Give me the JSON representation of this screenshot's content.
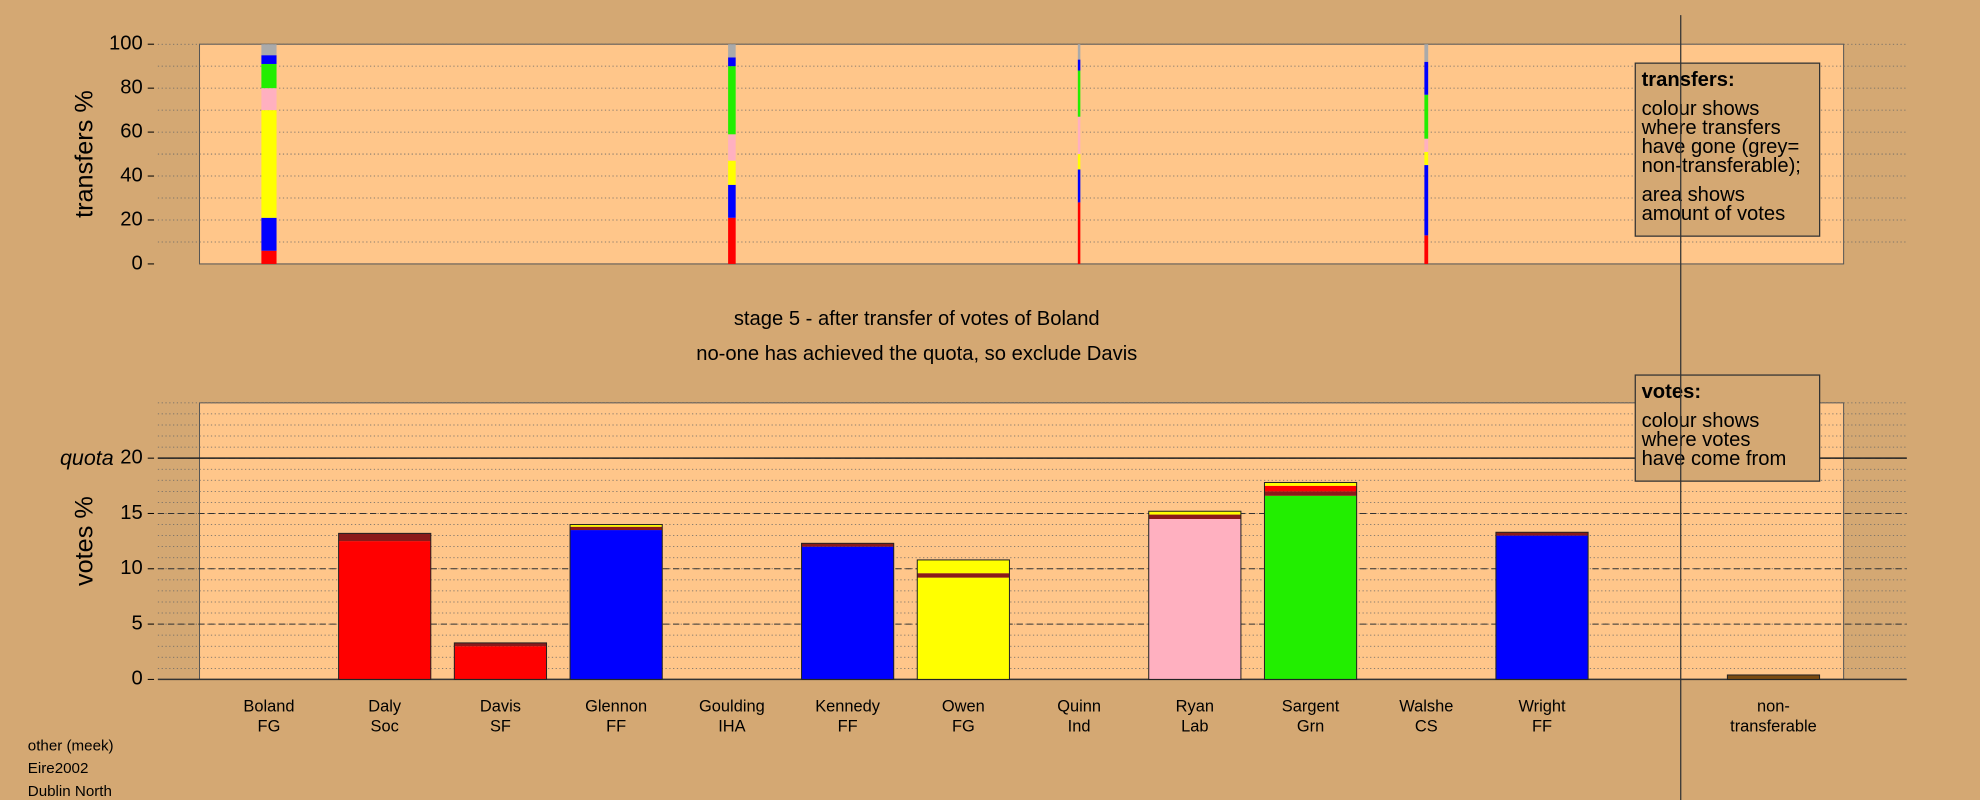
{
  "chart_data": [
    {
      "type": "bar",
      "stacked": true,
      "y_label": "transfers %",
      "categories": [
        null,
        null,
        null,
        null
      ],
      "series": [
        {
          "color": "#ff0000",
          "values": [
            6,
            21,
            28,
            13
          ]
        },
        {
          "color": "#0000ff",
          "values": [
            15,
            15,
            15,
            32
          ]
        },
        {
          "color": "#ffff00",
          "values": [
            49,
            11,
            7,
            6
          ]
        },
        {
          "color": "#ffb0c0",
          "values": [
            10,
            12,
            17,
            6
          ]
        },
        {
          "color": "#22ee00",
          "values": [
            11,
            31,
            21,
            20
          ]
        },
        {
          "color": "#0000ff",
          "values": [
            4,
            4,
            5,
            15
          ]
        },
        {
          "color": "#aaaaaa",
          "values": [
            5,
            6,
            7,
            8
          ]
        }
      ],
      "ylim": [
        0,
        100
      ],
      "yticks": [
        0,
        20,
        40,
        60,
        80,
        100
      ],
      "minor_grid_step": 10,
      "legend_text": {
        "title": "transfers:",
        "paragraphs": [
          [
            "colour shows",
            "where transfers",
            "have gone (grey=",
            "non-transferable);"
          ],
          [
            "area shows",
            "amount of votes"
          ]
        ]
      }
    },
    {
      "type": "bar",
      "stacked": true,
      "y_label": "votes %",
      "categories": [
        [
          "Boland",
          "FG"
        ],
        [
          "Daly",
          "Soc"
        ],
        [
          "Davis",
          "SF"
        ],
        [
          "Glennon",
          "FF"
        ],
        [
          "Goulding",
          "IHA"
        ],
        [
          "Kennedy",
          "FF"
        ],
        [
          "Owen",
          "FG"
        ],
        [
          "Quinn",
          "Ind"
        ],
        [
          "Ryan",
          "Lab"
        ],
        [
          "Sargent",
          "Grn"
        ],
        [
          "Walshe",
          "CS"
        ],
        [
          "Wright",
          "FF"
        ],
        [
          "non-",
          "transferable"
        ]
      ],
      "series": [
        {
          "color": "#ff0000",
          "values": [
            0,
            12.5,
            3.0,
            0,
            0,
            0,
            0,
            0,
            0,
            0,
            0,
            0,
            0
          ]
        },
        {
          "color": "#0000ff",
          "values": [
            0,
            0,
            0,
            13.5,
            0,
            12.0,
            0,
            0,
            0,
            0,
            0,
            13.0,
            0
          ]
        },
        {
          "color": "#ffff00",
          "values": [
            0,
            0,
            0,
            0,
            0,
            0,
            9.2,
            0,
            0,
            0,
            0,
            0,
            0
          ]
        },
        {
          "color": "#ffb0c0",
          "values": [
            0,
            0,
            0,
            0,
            0,
            0,
            0,
            0,
            14.5,
            0,
            0,
            0,
            0
          ]
        },
        {
          "color": "#22ee00",
          "values": [
            0,
            0,
            0,
            0,
            0,
            0,
            0,
            0,
            0,
            16.6,
            0,
            0,
            0
          ]
        },
        {
          "color": "#8b1a1a",
          "values": [
            0,
            0.7,
            0.3,
            0.3,
            0,
            0.3,
            0.4,
            0,
            0.4,
            0.4,
            0,
            0.3,
            0
          ]
        },
        {
          "color": "#ff0000",
          "values": [
            0,
            0,
            0,
            0,
            0,
            0,
            0,
            0,
            0,
            0.5,
            0,
            0,
            0
          ]
        },
        {
          "color": "#ffff00",
          "values": [
            0,
            0,
            0,
            0.2,
            0,
            0,
            1.2,
            0,
            0.3,
            0.3,
            0,
            0,
            0
          ]
        },
        {
          "color": "#7a4a10",
          "values": [
            0,
            0,
            0,
            0,
            0,
            0,
            0,
            0,
            0,
            0,
            0,
            0,
            0.4
          ]
        }
      ],
      "ylim": [
        0,
        25
      ],
      "yticks": [
        0,
        5,
        10,
        15,
        20
      ],
      "minor_grid_step": 1,
      "quota": {
        "value": 20,
        "label": "quota"
      },
      "legend_text": {
        "title": "votes:",
        "paragraphs": [
          [
            "colour shows",
            "where votes",
            "have come from"
          ]
        ]
      }
    }
  ],
  "captions": [
    "stage 5 - after transfer of votes of Boland",
    "no-one has achieved the quota, so exclude Davis"
  ],
  "footer": [
    "other (meek)",
    "Eire2002",
    "Dublin North"
  ]
}
